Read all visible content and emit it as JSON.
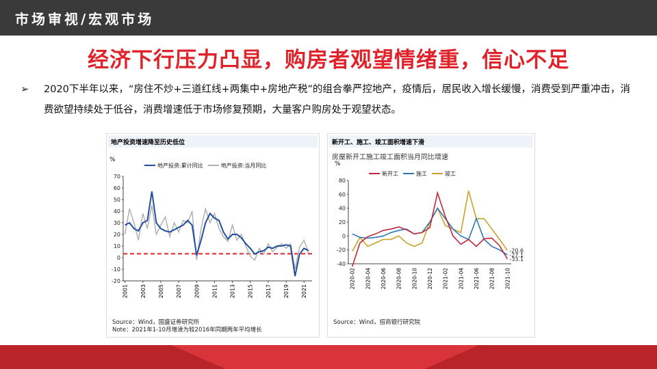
{
  "header": {
    "title": "市场审视/宏观市场"
  },
  "headline": "经济下行压力凸显，购房者观望情绪重，信心不足",
  "bullet": "2020下半年以来，“房住不炒+三道红线+两集中+房地产税”的组合拳严控地产，疫情后，居民收入增长缓慢，消费受到严重冲击，消费欲望持续处于低谷，消费增速低于市场修复预期，大量客户购房处于观望状态。",
  "chart_data": [
    {
      "type": "line",
      "title": "地产投资增速降至历史低位",
      "y_label": "%",
      "x": [
        2001,
        2001.5,
        2002,
        2002.5,
        2003,
        2003.5,
        2004,
        2004.5,
        2005,
        2005.5,
        2006,
        2006.5,
        2007,
        2007.5,
        2008,
        2008.5,
        2009,
        2009.5,
        2010,
        2010.5,
        2011,
        2011.5,
        2012,
        2012.5,
        2013,
        2013.5,
        2014,
        2014.5,
        2015,
        2015.5,
        2016,
        2016.5,
        2017,
        2017.5,
        2018,
        2018.5,
        2019,
        2019.5,
        2020,
        2020.5,
        2021,
        2021.5
      ],
      "series": [
        {
          "name": "地产投资:累计同比",
          "color": "#1f4e9c",
          "width": 2,
          "values": [
            28,
            30,
            25,
            23,
            30,
            32,
            57,
            30,
            25,
            23,
            22,
            24,
            26,
            28,
            32,
            28,
            2,
            15,
            30,
            38,
            34,
            32,
            22,
            16,
            20,
            20,
            17,
            12,
            8,
            3,
            5,
            6,
            9,
            8,
            10,
            10,
            11,
            10,
            -16,
            3,
            8,
            6
          ]
        },
        {
          "name": "地产投资:当月同比",
          "color": "#b0b0b0",
          "width": 1.5,
          "values": [
            20,
            42,
            30,
            15,
            38,
            25,
            45,
            20,
            28,
            35,
            18,
            30,
            22,
            32,
            30,
            40,
            -2,
            25,
            42,
            30,
            38,
            25,
            18,
            14,
            28,
            15,
            20,
            10,
            1,
            -2,
            8,
            3,
            12,
            5,
            9,
            12,
            8,
            12,
            -10,
            9,
            15,
            4
          ]
        }
      ],
      "hline": {
        "value": 3.3,
        "color": "#d9262c"
      },
      "xlim": [
        2000.8,
        2021.9
      ],
      "xticks": [
        2001,
        2003,
        2005,
        2007,
        2009,
        2011,
        2013,
        2015,
        2017,
        2019,
        2021
      ],
      "ylim": [
        -20,
        70
      ],
      "yticks": [
        -20,
        -10,
        0,
        10,
        20,
        30,
        40,
        50,
        60,
        70
      ],
      "notes": [
        "Source：Wind，国盛证券研究所",
        "Note：2021年1-10月增速为较2016年同期两年平均增长"
      ]
    },
    {
      "type": "line",
      "title": "新开工、施工、竣工面积增速下滑",
      "subtitle": "房屋新开工施工竣工面积当月同比增速",
      "y_label": "%",
      "categories": [
        "2020-02",
        null,
        "2020-04",
        null,
        "2020-06",
        null,
        "2020-08",
        null,
        "2020-10",
        null,
        "2020-12",
        null,
        "2021-02",
        null,
        "2021-04",
        null,
        "2021-06",
        null,
        "2021-08",
        null,
        "2021-10"
      ],
      "series": [
        {
          "name": "新开工",
          "color": "#c0283a",
          "width": 1.6,
          "values": [
            -44,
            -10,
            -1,
            3,
            8,
            10,
            13,
            9,
            3,
            5,
            12,
            62,
            28,
            0,
            -12,
            -5,
            -15,
            -4,
            -3,
            -14,
            -33.1
          ]
        },
        {
          "name": "施工",
          "color": "#2e75b6",
          "width": 1.6,
          "values": [
            3,
            -2,
            -3,
            -2,
            0,
            5,
            8,
            10,
            3,
            5,
            20,
            40,
            25,
            10,
            0,
            -5,
            25,
            -5,
            -15,
            -20,
            -27.1
          ]
        },
        {
          "name": "竣工",
          "color": "#c9a227",
          "width": 1.6,
          "values": [
            -22,
            -2,
            -15,
            -10,
            -5,
            -5,
            0,
            -10,
            -15,
            -10,
            20,
            40,
            15,
            10,
            5,
            65,
            25,
            25,
            10,
            -5,
            -20.6
          ]
        }
      ],
      "end_labels": true,
      "ylim": [
        -40,
        80
      ],
      "yticks": [
        -40,
        -20,
        0,
        20,
        40,
        60,
        80
      ],
      "notes": [
        "Source：Wind，招商银行研究院"
      ]
    }
  ]
}
